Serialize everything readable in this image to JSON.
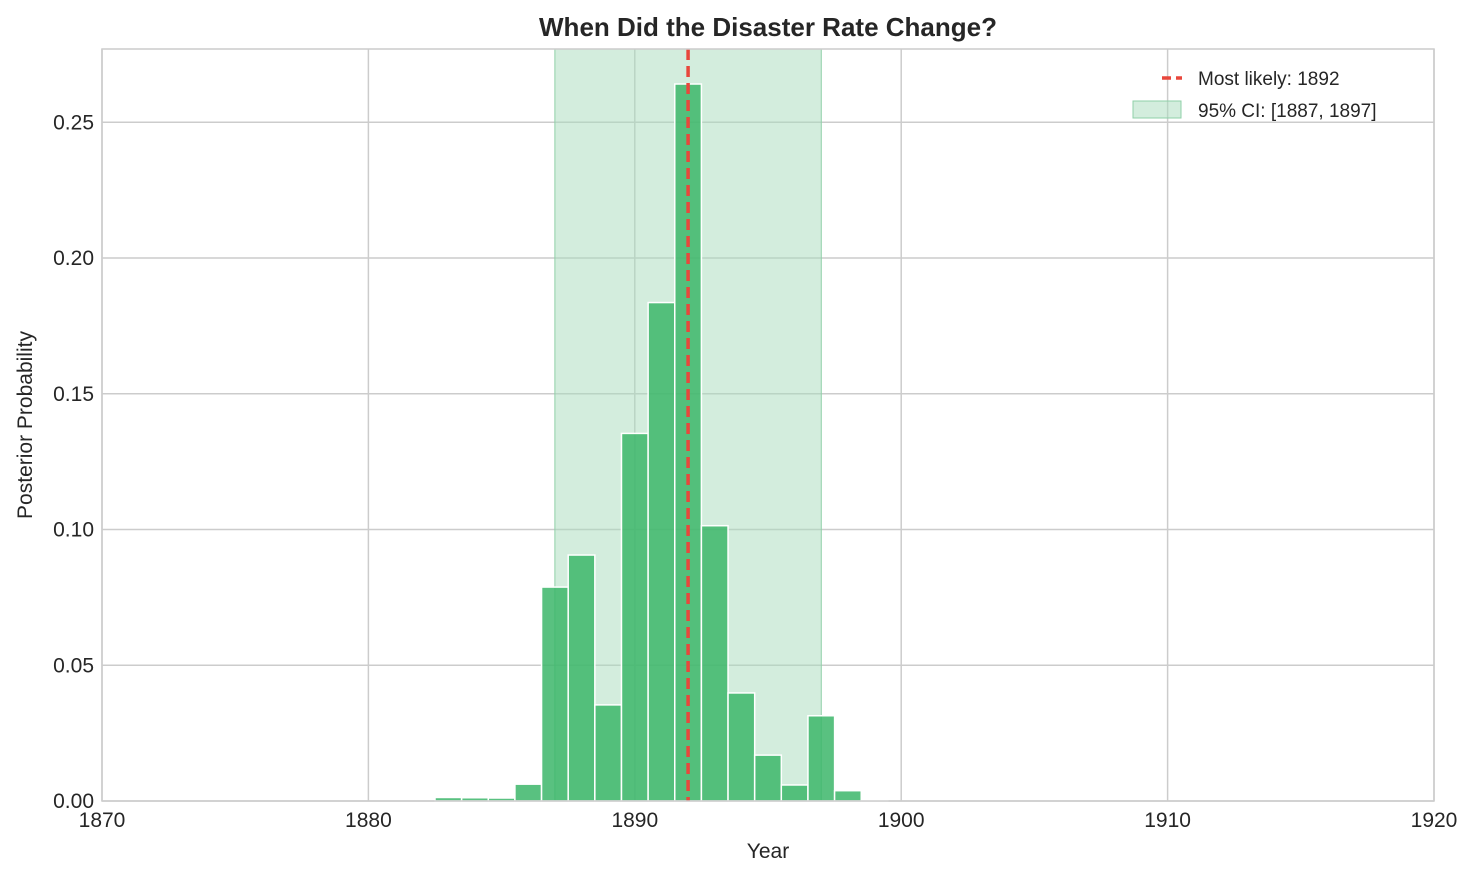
{
  "chart_data": {
    "type": "bar",
    "title": "When Did the Disaster Rate Change?",
    "xlabel": "Year",
    "ylabel": "Posterior Probability",
    "xlim": [
      1870,
      1920
    ],
    "ylim": [
      0,
      0.277
    ],
    "xticks": [
      1870,
      1880,
      1890,
      1900,
      1910,
      1920
    ],
    "xtick_labels": [
      "1870",
      "1880",
      "1890",
      "1900",
      "1910",
      "1920"
    ],
    "yticks": [
      0.0,
      0.05,
      0.1,
      0.15,
      0.2,
      0.25
    ],
    "ytick_labels": [
      "0.00",
      "0.05",
      "0.10",
      "0.15",
      "0.20",
      "0.25"
    ],
    "grid": true,
    "bar_width": 1,
    "bars": [
      {
        "year": 1883,
        "value": 0.0013
      },
      {
        "year": 1884,
        "value": 0.0012
      },
      {
        "year": 1885,
        "value": 0.0011
      },
      {
        "year": 1886,
        "value": 0.0062
      },
      {
        "year": 1887,
        "value": 0.0788
      },
      {
        "year": 1888,
        "value": 0.0906
      },
      {
        "year": 1889,
        "value": 0.0354
      },
      {
        "year": 1890,
        "value": 0.1354
      },
      {
        "year": 1891,
        "value": 0.1836
      },
      {
        "year": 1892,
        "value": 0.2641
      },
      {
        "year": 1893,
        "value": 0.1014
      },
      {
        "year": 1894,
        "value": 0.0398
      },
      {
        "year": 1895,
        "value": 0.0169
      },
      {
        "year": 1896,
        "value": 0.0059
      },
      {
        "year": 1897,
        "value": 0.0314
      },
      {
        "year": 1898,
        "value": 0.0038
      },
      {
        "year": 1899,
        "value": 0.0004
      }
    ],
    "most_likely": 1892,
    "ci": [
      1887,
      1897
    ],
    "legend": {
      "placement": "top-right",
      "entries": [
        {
          "kind": "line",
          "label": "Most likely: 1892"
        },
        {
          "kind": "patch",
          "label": "95% CI: [1887, 1897]"
        }
      ]
    },
    "colors": {
      "bar": "#3cb66a",
      "ci_fill": "#a8dcbc",
      "most_likely_line": "#e8473c",
      "grid": "#cccccc",
      "frame": "#cccccc"
    }
  }
}
